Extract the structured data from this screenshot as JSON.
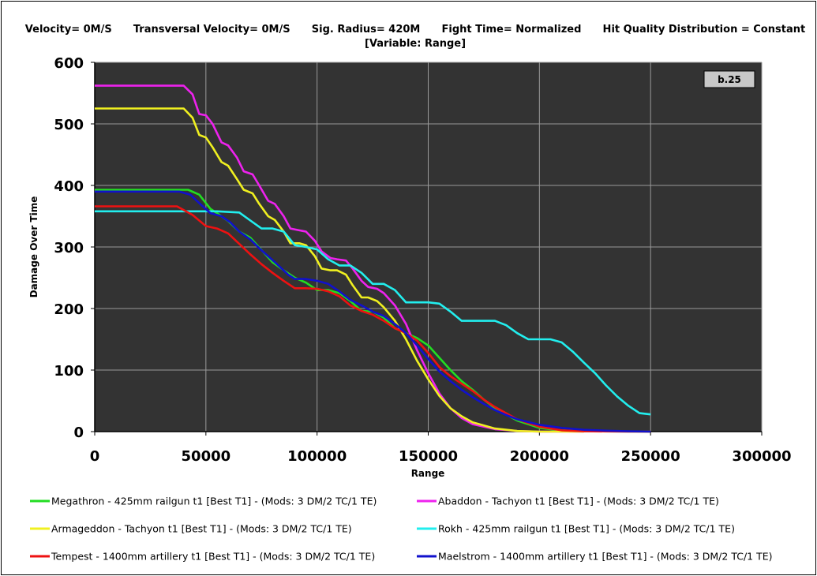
{
  "header": {
    "line1": "Velocity= 0M/S      Transversal Velocity= 0M/S      Sig. Radius= 420M      Fight Time= Normalized      Hit Quality Distribution = Constant",
    "line2": "[Variable: Range]"
  },
  "badge": "b.25",
  "chart_data": {
    "type": "line",
    "xlabel": "Range",
    "ylabel": "Damage Over Time",
    "xlim": [
      0,
      300000
    ],
    "ylim": [
      0,
      600
    ],
    "xticks": [
      0,
      50000,
      100000,
      150000,
      200000,
      250000,
      300000
    ],
    "yticks": [
      0,
      100,
      200,
      300,
      400,
      500,
      600
    ],
    "grid": true,
    "legend_position": "bottom",
    "background": "#333333",
    "series": [
      {
        "name": "Megathron - 425mm railgun t1 [Best T1] - (Mods: 3 DM/2 TC/1 TE)",
        "color": "#22dd22",
        "x": [
          0,
          42000,
          47000,
          52000,
          55000,
          60000,
          65000,
          70000,
          75000,
          80000,
          85000,
          90000,
          95000,
          100000,
          105000,
          110000,
          115000,
          120000,
          125000,
          130000,
          135000,
          140000,
          145000,
          150000,
          155000,
          160000,
          165000,
          170000,
          175000,
          180000,
          185000,
          190000,
          200000,
          210000,
          220000,
          250000
        ],
        "y": [
          393,
          393,
          385,
          362,
          355,
          342,
          325,
          315,
          295,
          275,
          262,
          250,
          242,
          230,
          230,
          225,
          212,
          196,
          195,
          185,
          168,
          160,
          152,
          140,
          120,
          100,
          82,
          68,
          52,
          38,
          28,
          18,
          6,
          2,
          0.5,
          0
        ]
      },
      {
        "name": "Abaddon - Tachyon t1 [Best T1] - (Mods: 3 DM/2 TC/1 TE)",
        "color": "#ee22ee",
        "x": [
          0,
          40000,
          44000,
          47000,
          50000,
          53000,
          57000,
          60000,
          64000,
          67000,
          71000,
          74000,
          78000,
          81000,
          85000,
          88000,
          92000,
          95000,
          99000,
          102000,
          106000,
          109000,
          113000,
          116000,
          120000,
          123000,
          127000,
          130000,
          135000,
          140000,
          145000,
          150000,
          155000,
          160000,
          165000,
          170000,
          180000,
          190000,
          200000,
          220000
        ],
        "y": [
          562,
          562,
          548,
          516,
          514,
          500,
          470,
          465,
          445,
          423,
          418,
          400,
          375,
          370,
          350,
          330,
          327,
          325,
          310,
          293,
          282,
          280,
          278,
          265,
          245,
          235,
          232,
          225,
          205,
          175,
          132,
          95,
          62,
          38,
          22,
          12,
          4,
          1,
          0,
          0
        ]
      },
      {
        "name": "Armageddon - Tachyon t1 [Best T1] - (Mods: 3 DM/2 TC/1 TE)",
        "color": "#f0f020",
        "x": [
          0,
          40000,
          44000,
          47000,
          50000,
          53000,
          57000,
          60000,
          64000,
          67000,
          71000,
          74000,
          78000,
          81000,
          85000,
          88000,
          92000,
          95000,
          99000,
          102000,
          106000,
          109000,
          113000,
          116000,
          120000,
          123000,
          127000,
          130000,
          135000,
          140000,
          145000,
          150000,
          155000,
          160000,
          165000,
          170000,
          180000,
          190000,
          200000,
          220000
        ],
        "y": [
          525,
          525,
          510,
          482,
          478,
          462,
          438,
          432,
          410,
          393,
          387,
          370,
          350,
          344,
          325,
          306,
          306,
          303,
          285,
          265,
          262,
          262,
          255,
          238,
          218,
          218,
          212,
          202,
          180,
          150,
          115,
          85,
          58,
          38,
          25,
          15,
          5,
          1,
          0,
          0
        ]
      },
      {
        "name": "Rokh - 425mm railgun t1 [Best T1] - (Mods: 3 DM/2 TC/1 TE)",
        "color": "#22eeee",
        "x": [
          0,
          38000,
          45000,
          55000,
          65000,
          70000,
          75000,
          80000,
          85000,
          90000,
          95000,
          100000,
          105000,
          110000,
          115000,
          120000,
          125000,
          130000,
          135000,
          140000,
          145000,
          150000,
          155000,
          160000,
          165000,
          170000,
          175000,
          180000,
          185000,
          190000,
          195000,
          200000,
          205000,
          210000,
          215000,
          220000,
          225000,
          230000,
          235000,
          240000,
          245000,
          250000
        ],
        "y": [
          358,
          358,
          358,
          358,
          356,
          343,
          330,
          330,
          325,
          303,
          300,
          296,
          280,
          270,
          270,
          258,
          240,
          240,
          230,
          210,
          210,
          210,
          208,
          195,
          180,
          180,
          180,
          180,
          173,
          160,
          150,
          150,
          150,
          145,
          130,
          112,
          95,
          75,
          57,
          42,
          30,
          28
        ]
      },
      {
        "name": "Tempest - 1400mm artillery t1 [Best T1] - (Mods: 3 DM/2 TC/1 TE)",
        "color": "#ee1111",
        "x": [
          0,
          37000,
          44000,
          50000,
          55000,
          60000,
          65000,
          70000,
          75000,
          80000,
          85000,
          90000,
          95000,
          100000,
          105000,
          110000,
          115000,
          120000,
          125000,
          130000,
          135000,
          140000,
          145000,
          150000,
          155000,
          160000,
          165000,
          170000,
          175000,
          180000,
          185000,
          190000,
          200000,
          210000,
          220000,
          240000,
          250000
        ],
        "y": [
          366,
          366,
          352,
          334,
          330,
          322,
          305,
          288,
          272,
          258,
          245,
          233,
          233,
          232,
          228,
          220,
          205,
          196,
          190,
          180,
          168,
          160,
          148,
          128,
          105,
          90,
          78,
          66,
          52,
          40,
          30,
          20,
          8,
          2,
          0.5,
          0,
          0
        ]
      },
      {
        "name": "Maelstrom - 1400mm artillery t1 [Best T1] - (Mods: 3 DM/2 TC/1 TE)",
        "color": "#1111cc",
        "x": [
          0,
          38000,
          43000,
          48000,
          52000,
          57000,
          61000,
          65000,
          70000,
          74000,
          78000,
          82000,
          87000,
          90000,
          95000,
          100000,
          105000,
          110000,
          115000,
          120000,
          125000,
          130000,
          135000,
          140000,
          145000,
          150000,
          155000,
          160000,
          165000,
          170000,
          175000,
          180000,
          185000,
          190000,
          200000,
          210000,
          220000,
          230000,
          240000,
          250000
        ],
        "y": [
          390,
          390,
          385,
          368,
          355,
          350,
          340,
          325,
          312,
          298,
          285,
          272,
          255,
          248,
          248,
          245,
          240,
          228,
          214,
          205,
          195,
          188,
          175,
          160,
          140,
          118,
          98,
          82,
          68,
          56,
          45,
          35,
          27,
          20,
          11,
          6,
          3,
          1.5,
          0.5,
          0
        ]
      }
    ]
  }
}
